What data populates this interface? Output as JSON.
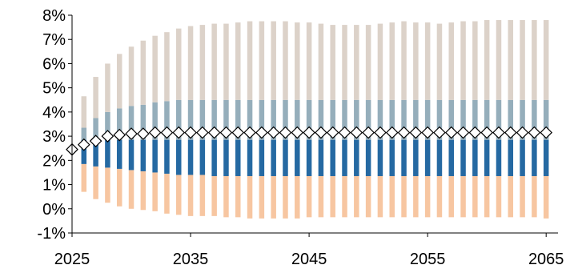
{
  "chart_data": {
    "type": "bar",
    "subtype": "fan-chart-stacked-bands-with-median-markers",
    "title": "",
    "xlabel": "",
    "ylabel": "",
    "x": [
      2025,
      2026,
      2027,
      2028,
      2029,
      2030,
      2031,
      2032,
      2033,
      2034,
      2035,
      2036,
      2037,
      2038,
      2039,
      2040,
      2041,
      2042,
      2043,
      2044,
      2045,
      2046,
      2047,
      2048,
      2049,
      2050,
      2051,
      2052,
      2053,
      2054,
      2055,
      2056,
      2057,
      2058,
      2059,
      2060,
      2061,
      2062,
      2063,
      2064,
      2065
    ],
    "xlim": [
      2025,
      2066
    ],
    "ylim": [
      -1,
      8
    ],
    "x_ticks": [
      2025,
      2035,
      2045,
      2055,
      2065
    ],
    "x_tick_labels": [
      "2025",
      "2035",
      "2045",
      "2055",
      "2065"
    ],
    "y_ticks": [
      -1,
      0,
      1,
      2,
      3,
      4,
      5,
      6,
      7,
      8
    ],
    "y_tick_labels": [
      "-1%",
      "0%",
      "1%",
      "2%",
      "3%",
      "4%",
      "5%",
      "6%",
      "7%",
      "8%"
    ],
    "grid": false,
    "legend": "none",
    "colors": {
      "outer_upper": "#dcd2c9",
      "inner_upper": "#95aebb",
      "inner_lower": "#2569a2",
      "outer_lower": "#f7c6a1",
      "marker_fill": "#ffffff",
      "marker_stroke": "#000000",
      "axis": "#000000"
    },
    "bands": {
      "p10": [
        null,
        0.7,
        0.4,
        0.25,
        0.1,
        0.0,
        -0.05,
        -0.1,
        -0.2,
        -0.25,
        -0.3,
        -0.3,
        -0.3,
        -0.35,
        -0.35,
        -0.4,
        -0.4,
        -0.4,
        -0.4,
        -0.4,
        -0.35,
        -0.35,
        -0.35,
        -0.35,
        -0.35,
        -0.35,
        -0.35,
        -0.35,
        -0.35,
        -0.35,
        -0.35,
        -0.35,
        -0.35,
        -0.35,
        -0.35,
        -0.35,
        -0.35,
        -0.35,
        -0.35,
        -0.35,
        -0.4
      ],
      "p25": [
        null,
        1.85,
        1.75,
        1.7,
        1.65,
        1.6,
        1.55,
        1.5,
        1.45,
        1.4,
        1.4,
        1.4,
        1.35,
        1.35,
        1.35,
        1.35,
        1.35,
        1.35,
        1.35,
        1.35,
        1.35,
        1.35,
        1.35,
        1.35,
        1.35,
        1.35,
        1.35,
        1.35,
        1.35,
        1.35,
        1.35,
        1.35,
        1.35,
        1.35,
        1.35,
        1.35,
        1.35,
        1.35,
        1.35,
        1.35,
        1.35
      ],
      "p50": [
        null,
        2.85,
        2.85,
        2.85,
        2.85,
        2.85,
        2.85,
        2.85,
        2.85,
        2.85,
        2.85,
        2.85,
        2.85,
        2.85,
        2.85,
        2.85,
        2.85,
        2.85,
        2.85,
        2.85,
        2.85,
        2.85,
        2.85,
        2.85,
        2.85,
        2.85,
        2.85,
        2.85,
        2.85,
        2.85,
        2.85,
        2.85,
        2.85,
        2.85,
        2.85,
        2.85,
        2.85,
        2.85,
        2.85,
        2.85,
        2.85
      ],
      "p75": [
        null,
        3.35,
        3.75,
        4.0,
        4.15,
        4.25,
        4.3,
        4.4,
        4.45,
        4.5,
        4.5,
        4.5,
        4.5,
        4.5,
        4.5,
        4.5,
        4.5,
        4.5,
        4.5,
        4.5,
        4.5,
        4.5,
        4.5,
        4.5,
        4.5,
        4.5,
        4.5,
        4.5,
        4.5,
        4.5,
        4.5,
        4.5,
        4.5,
        4.5,
        4.5,
        4.5,
        4.5,
        4.5,
        4.5,
        4.5,
        4.5
      ],
      "p90": [
        null,
        4.65,
        5.45,
        6.0,
        6.4,
        6.7,
        6.95,
        7.15,
        7.3,
        7.45,
        7.55,
        7.6,
        7.65,
        7.65,
        7.7,
        7.75,
        7.75,
        7.75,
        7.75,
        7.7,
        7.7,
        7.65,
        7.6,
        7.6,
        7.6,
        7.6,
        7.65,
        7.7,
        7.75,
        7.7,
        7.7,
        7.65,
        7.7,
        7.75,
        7.75,
        7.8,
        7.8,
        7.8,
        7.8,
        7.8,
        7.8
      ]
    },
    "median_markers": [
      2.45,
      2.65,
      2.8,
      3.0,
      3.05,
      3.1,
      3.1,
      3.15,
      3.15,
      3.15,
      3.15,
      3.15,
      3.15,
      3.15,
      3.15,
      3.15,
      3.15,
      3.15,
      3.15,
      3.15,
      3.15,
      3.15,
      3.15,
      3.15,
      3.15,
      3.15,
      3.15,
      3.15,
      3.15,
      3.15,
      3.15,
      3.15,
      3.15,
      3.15,
      3.15,
      3.15,
      3.15,
      3.15,
      3.15,
      3.15,
      3.15
    ]
  }
}
